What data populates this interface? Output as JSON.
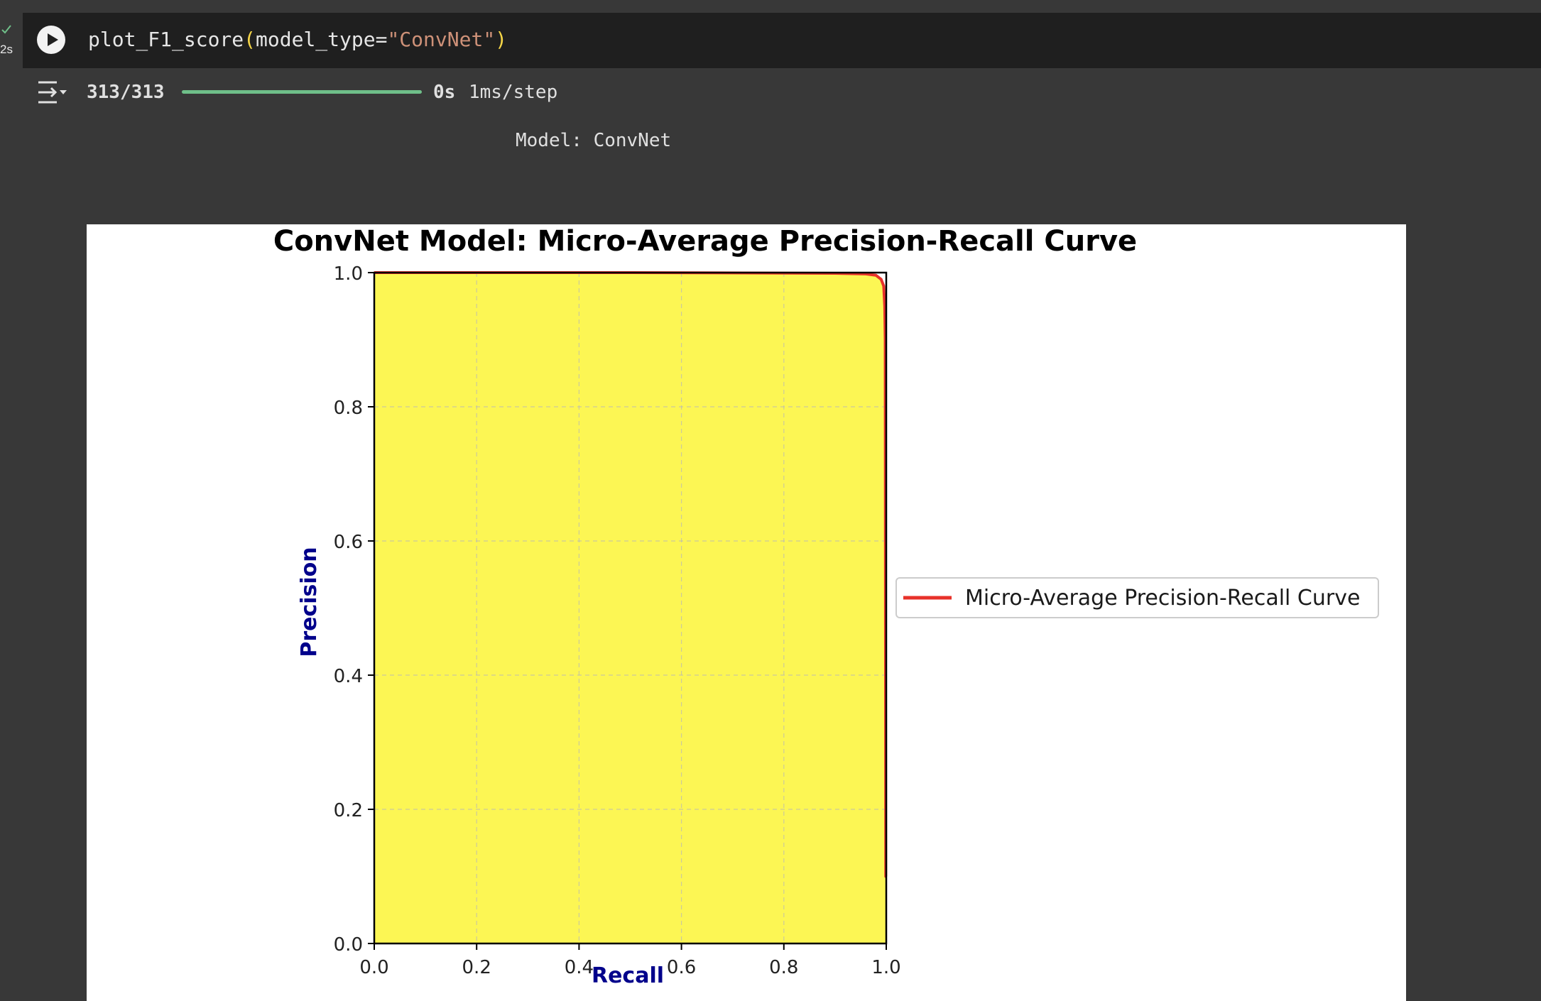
{
  "cell": {
    "exec_time": "2s",
    "code": {
      "func": "plot_F1_score",
      "open_paren": "(",
      "arg": "model_type=",
      "string": "\"ConvNet\"",
      "close_paren": ")"
    }
  },
  "output": {
    "progress_count": "313/313",
    "progress_fraction": 1.0,
    "progress_time": "0s",
    "progress_step": "1ms/step",
    "model_line": "Model: ConvNet"
  },
  "colors": {
    "fill": "#fcf654",
    "curve": "#e8312a",
    "axis_label": "#00008b",
    "progress": "#6fbf89"
  },
  "chart_data": {
    "type": "area",
    "title": "ConvNet Model: Micro-Average Precision-Recall Curve",
    "xlabel": "Recall",
    "ylabel": "Precision",
    "xlim": [
      0.0,
      1.0
    ],
    "ylim": [
      0.0,
      1.0
    ],
    "x_ticks": [
      "0.0",
      "0.2",
      "0.4",
      "0.6",
      "0.8",
      "1.0"
    ],
    "y_ticks": [
      "0.0",
      "0.2",
      "0.4",
      "0.6",
      "0.8",
      "1.0"
    ],
    "grid": true,
    "legend_position": "right",
    "series": [
      {
        "name": "Micro-Average Precision-Recall Curve",
        "x": [
          0.0,
          0.5,
          0.9,
          0.96,
          0.98,
          0.99,
          0.995,
          0.997,
          0.998,
          0.999,
          1.0
        ],
        "y": [
          1.0,
          1.0,
          0.999,
          0.998,
          0.996,
          0.99,
          0.98,
          0.95,
          0.9,
          0.1,
          0.1
        ]
      }
    ]
  }
}
